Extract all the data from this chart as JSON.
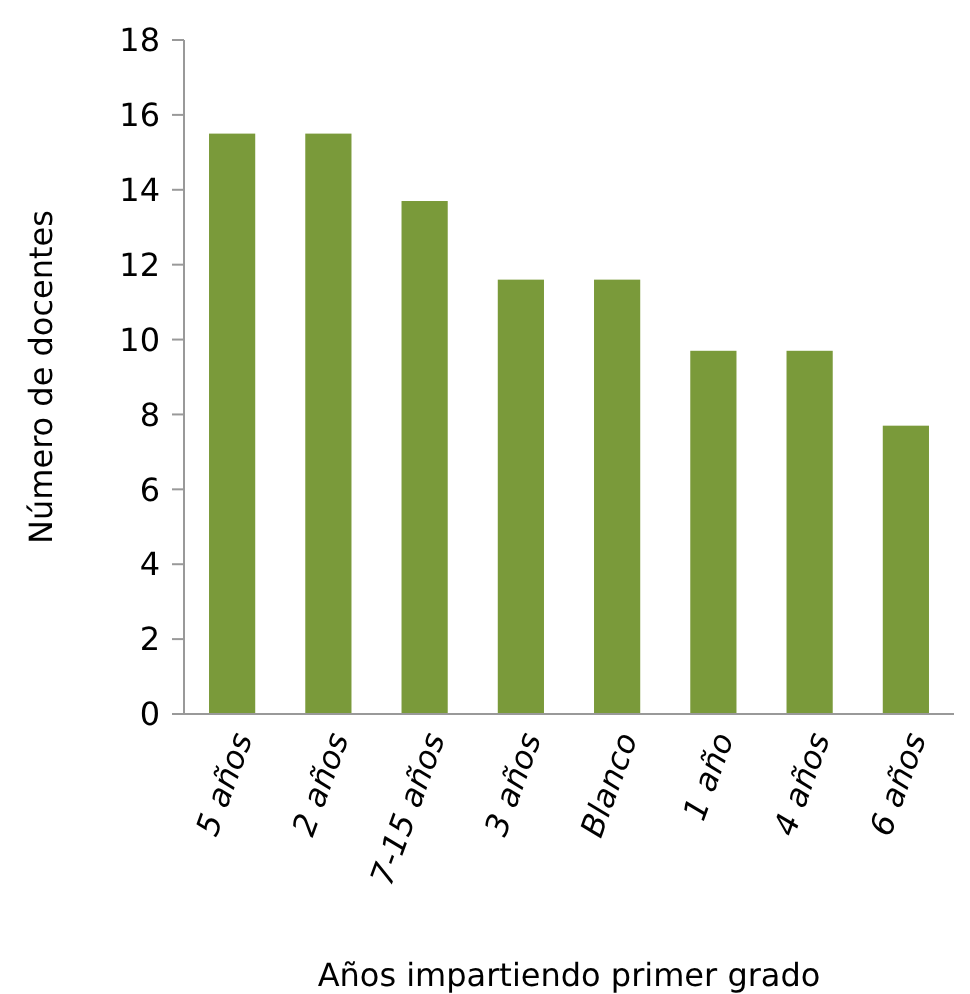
{
  "chart_data": {
    "type": "bar",
    "xlabel": "Años impartiendo primer grado",
    "ylabel": "Número de docentes",
    "categories": [
      "5 años",
      "2 años",
      "7-15 años",
      "3 años",
      "Blanco",
      "1 año",
      "4 años",
      "6 años"
    ],
    "values": [
      15.5,
      15.5,
      13.7,
      11.6,
      11.6,
      9.7,
      9.7,
      7.7
    ],
    "color": "#7a9a3a",
    "ylim": [
      0,
      18
    ],
    "yticks": [
      0,
      2,
      4,
      6,
      8,
      10,
      12,
      14,
      16,
      18
    ],
    "grid": false
  }
}
